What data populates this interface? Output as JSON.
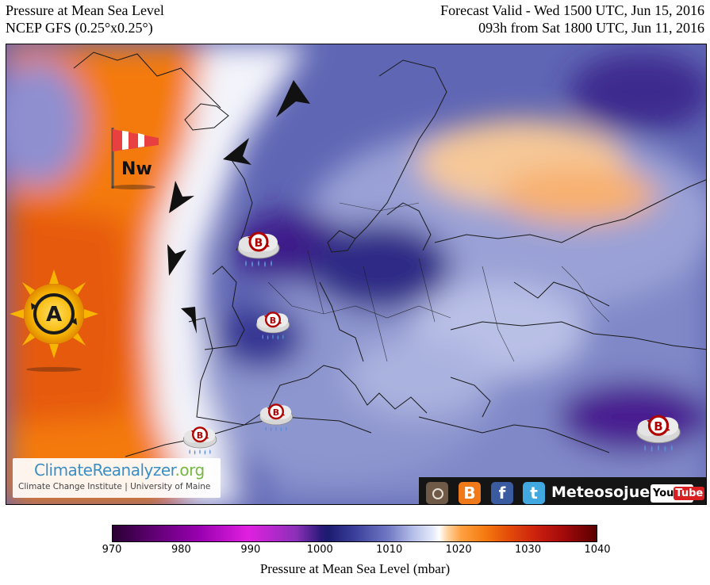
{
  "header": {
    "title": "Pressure at Mean Sea Level",
    "model": "NCEP GFS (0.25°x0.25°)",
    "valid": "Forecast Valid - Wed 1500 UTC, Jun 15, 2016",
    "init": "093h from Sat 1800 UTC, Jun 11, 2016"
  },
  "map": {
    "high_label": "A",
    "low_label": "B",
    "wind_label": "Nw",
    "icons": [
      "windsock-icon",
      "sun-anticyclone-icon",
      "storm-cloud-icon",
      "wind-arrow-icon"
    ]
  },
  "branding": {
    "site_part1": "Climate",
    "site_part2": "Reanalyzer",
    "site_part3": ".org",
    "institute": "Climate Change Institute | University of Maine",
    "social_name": "Meteosojuela",
    "youtube_you": "You",
    "youtube_tube": "Tube"
  },
  "colorbar": {
    "label": "Pressure at Mean Sea Level (mbar)",
    "ticks": [
      "970",
      "980",
      "990",
      "1000",
      "1010",
      "1020",
      "1030",
      "1040"
    ],
    "min": 970,
    "max": 1040,
    "colors": {
      "deep_low": "#3b0a6e",
      "low": "#2c2d86",
      "mid": "#9aa4d8",
      "neutral": "#ffffff",
      "high": "#f47a10",
      "very_high": "#c81e0e"
    }
  }
}
